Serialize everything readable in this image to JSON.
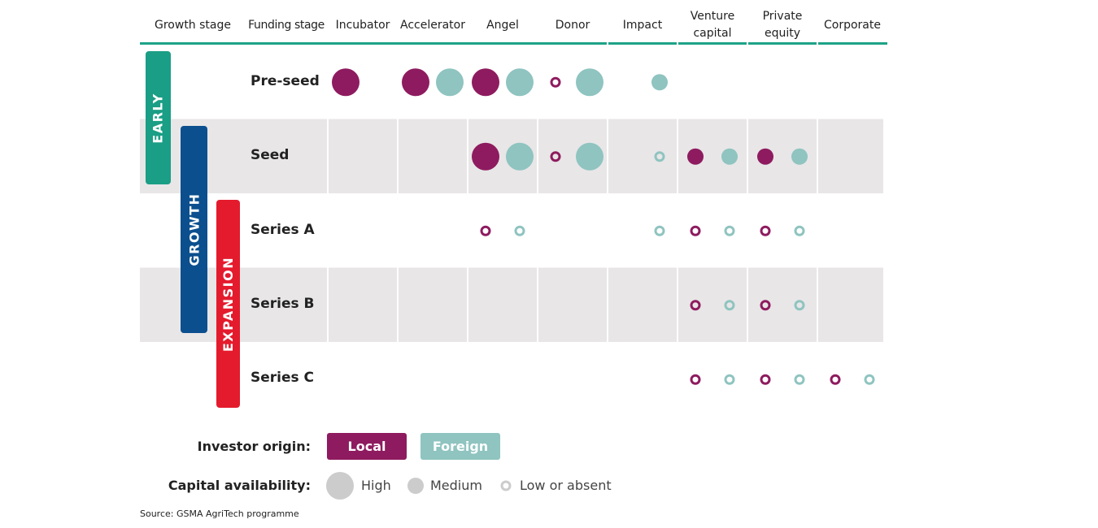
{
  "colors": {
    "local": "#8e1b5f",
    "foreign": "#8fc4c0",
    "early": "#1a9e85",
    "growth": "#0b4f8e",
    "expansion": "#e41b2d",
    "band": "#e8e6e7",
    "rule": "#1ea387"
  },
  "chart_data": {
    "type": "table",
    "columns": {
      "growth_stage": "Growth stage",
      "funding_stage": "Funding stage",
      "investors": [
        "Incubator",
        "Accelerator",
        "Angel",
        "Donor",
        "Impact",
        "Venture capital",
        "Private equity",
        "Corporate"
      ]
    },
    "rows": [
      "Pre-seed",
      "Seed",
      "Series A",
      "Series B",
      "Series C"
    ],
    "growth_stages": [
      {
        "label": "EARLY",
        "rows": [
          "Pre-seed",
          "Seed"
        ]
      },
      {
        "label": "GROWTH",
        "rows": [
          "Seed",
          "Series A",
          "Series B"
        ]
      },
      {
        "label": "EXPANSION",
        "rows": [
          "Series A",
          "Series B",
          "Series C"
        ]
      }
    ],
    "cells": [
      {
        "row": "Pre-seed",
        "investor": "Incubator",
        "local": "high",
        "foreign": null
      },
      {
        "row": "Pre-seed",
        "investor": "Accelerator",
        "local": "high",
        "foreign": "high"
      },
      {
        "row": "Pre-seed",
        "investor": "Angel",
        "local": "high",
        "foreign": "high"
      },
      {
        "row": "Pre-seed",
        "investor": "Donor",
        "local": "low",
        "foreign": "high"
      },
      {
        "row": "Pre-seed",
        "investor": "Impact",
        "local": null,
        "foreign": "medium"
      },
      {
        "row": "Seed",
        "investor": "Angel",
        "local": "high",
        "foreign": "high"
      },
      {
        "row": "Seed",
        "investor": "Donor",
        "local": "low",
        "foreign": "high"
      },
      {
        "row": "Seed",
        "investor": "Impact",
        "local": null,
        "foreign": "low"
      },
      {
        "row": "Seed",
        "investor": "Venture capital",
        "local": "medium",
        "foreign": "medium"
      },
      {
        "row": "Seed",
        "investor": "Private equity",
        "local": "medium",
        "foreign": "medium"
      },
      {
        "row": "Series A",
        "investor": "Angel",
        "local": "low",
        "foreign": "low"
      },
      {
        "row": "Series A",
        "investor": "Impact",
        "local": null,
        "foreign": "low"
      },
      {
        "row": "Series A",
        "investor": "Venture capital",
        "local": "low",
        "foreign": "low"
      },
      {
        "row": "Series A",
        "investor": "Private equity",
        "local": "low",
        "foreign": "low"
      },
      {
        "row": "Series B",
        "investor": "Venture capital",
        "local": "low",
        "foreign": "low"
      },
      {
        "row": "Series B",
        "investor": "Private equity",
        "local": "low",
        "foreign": "low"
      },
      {
        "row": "Series C",
        "investor": "Venture capital",
        "local": "low",
        "foreign": "low"
      },
      {
        "row": "Series C",
        "investor": "Private equity",
        "local": "low",
        "foreign": "low"
      },
      {
        "row": "Series C",
        "investor": "Corporate",
        "local": "low",
        "foreign": "low"
      }
    ]
  },
  "legend": {
    "origin_title": "Investor origin:",
    "local": "Local",
    "foreign": "Foreign",
    "capital_title": "Capital availability:",
    "high": "High",
    "medium": "Medium",
    "low": "Low or absent"
  },
  "source": "Source: GSMA AgriTech programme"
}
